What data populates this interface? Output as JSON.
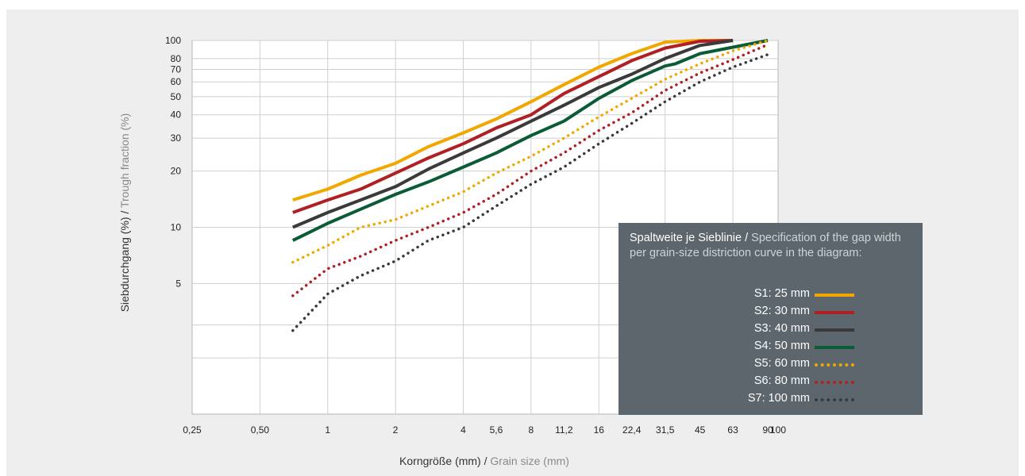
{
  "chart_data": {
    "type": "line",
    "xlabel": "Korngröße (mm)",
    "xlabel_en": "Grain size (mm)",
    "ylabel": "Siebdurchgang (%)",
    "ylabel_en": "Trough fraction (%)",
    "x_scale": "log",
    "y_scale": "log",
    "xlim": [
      0.25,
      100
    ],
    "ylim": [
      1,
      100
    ],
    "grid": true,
    "x_ticks": [
      "0,25",
      "0,50",
      "1",
      "2",
      "4",
      "5,6",
      "8",
      "11,2",
      "16",
      "22,4",
      "31,5",
      "45",
      "63",
      "90",
      "100"
    ],
    "y_ticks": [
      "100",
      "80",
      "70",
      "60",
      "50",
      "40",
      "30",
      "20",
      "10",
      "5"
    ],
    "series": [
      {
        "name": "S1",
        "style": "solid",
        "color": "#f0a800",
        "x": [
          0.7,
          1,
          1.4,
          2,
          2.8,
          4,
          5.6,
          8,
          11.2,
          16,
          22.4,
          31.5,
          45,
          63
        ],
        "y": [
          14,
          16,
          19,
          22,
          27,
          32,
          38,
          47,
          58,
          72,
          85,
          98,
          100,
          100
        ]
      },
      {
        "name": "S2",
        "style": "solid",
        "color": "#b01f24",
        "x": [
          0.7,
          1,
          1.4,
          2,
          2.8,
          4,
          5.6,
          8,
          11.2,
          16,
          22.4,
          31.5,
          45,
          63
        ],
        "y": [
          12,
          14,
          16,
          19.5,
          23.5,
          28,
          34,
          40,
          52,
          64,
          78,
          91,
          99,
          100
        ]
      },
      {
        "name": "S3",
        "style": "solid",
        "color": "#3a3a3a",
        "x": [
          0.7,
          1,
          1.4,
          2,
          2.8,
          4,
          5.6,
          8,
          11.2,
          16,
          22.4,
          31.5,
          45,
          63
        ],
        "y": [
          10,
          12,
          14,
          16.5,
          20.5,
          25,
          30,
          37,
          45,
          56,
          66,
          80,
          94,
          100
        ]
      },
      {
        "name": "S4",
        "style": "solid",
        "color": "#0a5c36",
        "x": [
          0.7,
          1,
          1.4,
          2,
          2.8,
          4,
          5.6,
          8,
          11.2,
          16,
          22.4,
          31.5,
          35,
          45,
          63,
          90
        ],
        "y": [
          8.5,
          10.5,
          12.5,
          15,
          17.5,
          21,
          25,
          31,
          37,
          49,
          61,
          73,
          75,
          85,
          92,
          100
        ]
      },
      {
        "name": "S5",
        "style": "dotted",
        "color": "#f0a800",
        "x": [
          0.7,
          1,
          1.4,
          2,
          2.8,
          4,
          5.6,
          8,
          11.2,
          16,
          22.4,
          31.5,
          45,
          63,
          90
        ],
        "y": [
          6.5,
          8,
          10,
          11,
          13,
          15.5,
          19.5,
          24,
          30,
          39,
          49,
          62,
          75,
          88,
          100
        ]
      },
      {
        "name": "S6",
        "style": "dotted",
        "color": "#b01f24",
        "x": [
          0.7,
          1,
          1.4,
          2,
          2.8,
          4,
          5.6,
          8,
          11.2,
          16,
          22.4,
          31.5,
          45,
          63,
          90
        ],
        "y": [
          4.3,
          6,
          7,
          8.5,
          10,
          12,
          15,
          20,
          25,
          33,
          41,
          54,
          67,
          79,
          95
        ]
      },
      {
        "name": "S7",
        "style": "dotted",
        "color": "#3a3a3a",
        "x": [
          0.7,
          1,
          1.4,
          2,
          2.8,
          4,
          5.6,
          8,
          11.2,
          16,
          22.4,
          31.5,
          45,
          63,
          90
        ],
        "y": [
          2.8,
          4.4,
          5.5,
          6.6,
          8.5,
          10,
          13,
          17,
          21,
          28,
          36,
          47,
          60,
          72,
          84
        ]
      }
    ],
    "legend": {
      "title": "Spaltweite je Sieblinie /",
      "title_en": "Specification of the gap width per grain-size distriction curve in the diagram:",
      "entries": [
        {
          "label": "S1:   25 mm"
        },
        {
          "label": "S2:   30 mm"
        },
        {
          "label": "S3:   40 mm"
        },
        {
          "label": "S4:   50 mm"
        },
        {
          "label": "S5:   60 mm"
        },
        {
          "label": "S6:   80 mm"
        },
        {
          "label": "S7: 100 mm"
        }
      ]
    }
  }
}
